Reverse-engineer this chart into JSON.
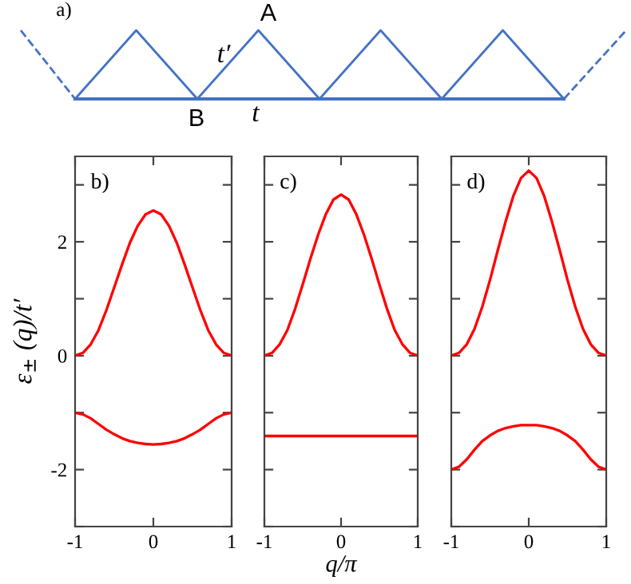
{
  "chart_data": [
    {
      "type": "other",
      "annotations": [
        "a)",
        "A",
        "t′",
        "B",
        "t"
      ]
    },
    {
      "type": "line",
      "annotations": [
        "b)"
      ],
      "ylabel": "ε$_{±}$ (q)/t′",
      "x": [
        -1,
        -0.9,
        -0.8,
        -0.7,
        -0.6,
        -0.5,
        -0.4,
        -0.3,
        -0.2,
        -0.1,
        0,
        0.1,
        0.2,
        0.3,
        0.4,
        0.5,
        0.6,
        0.7,
        0.8,
        0.9,
        1
      ],
      "series": [
        {
          "color": "#ff0000",
          "values": [
            0,
            0.05,
            0.2,
            0.45,
            0.8,
            1.2,
            1.6,
            1.98,
            2.28,
            2.48,
            2.55,
            2.48,
            2.28,
            1.98,
            1.6,
            1.2,
            0.8,
            0.45,
            0.2,
            0.05,
            0
          ]
        },
        {
          "color": "#ff0000",
          "values": [
            -1,
            -1.03,
            -1.1,
            -1.2,
            -1.3,
            -1.38,
            -1.45,
            -1.5,
            -1.53,
            -1.55,
            -1.56,
            -1.55,
            -1.53,
            -1.5,
            -1.45,
            -1.38,
            -1.3,
            -1.2,
            -1.1,
            -1.03,
            -1
          ]
        }
      ],
      "xlim": [
        -1,
        1
      ],
      "ylim": [
        -3,
        3.5
      ],
      "xticks": [
        -1,
        0,
        1
      ],
      "yticks": [
        {
          "value": -3,
          "label": null
        },
        -2,
        {
          "value": -1,
          "label": null
        },
        0,
        {
          "value": 1,
          "label": null
        },
        2,
        {
          "value": 3,
          "label": null
        }
      ],
      "grid": false,
      "legend": false,
      "marker": "none",
      "line_style": "solid"
    },
    {
      "type": "line",
      "annotations": [
        "c)"
      ],
      "xlabel": "q/π",
      "x": [
        -1,
        -0.9,
        -0.8,
        -0.7,
        -0.6,
        -0.5,
        -0.4,
        -0.3,
        -0.2,
        -0.1,
        0,
        0.1,
        0.2,
        0.3,
        0.4,
        0.5,
        0.6,
        0.7,
        0.8,
        0.9,
        1
      ],
      "series": [
        {
          "color": "#ff0000",
          "values": [
            0,
            0.05,
            0.2,
            0.45,
            0.82,
            1.25,
            1.7,
            2.12,
            2.48,
            2.74,
            2.83,
            2.74,
            2.48,
            2.12,
            1.7,
            1.25,
            0.82,
            0.45,
            0.2,
            0.05,
            0
          ]
        },
        {
          "color": "#ff0000",
          "values": [
            -1.41,
            -1.41,
            -1.41,
            -1.41,
            -1.41,
            -1.41,
            -1.41,
            -1.41,
            -1.41,
            -1.41,
            -1.41,
            -1.41,
            -1.41,
            -1.41,
            -1.41,
            -1.41,
            -1.41,
            -1.41,
            -1.41,
            -1.41,
            -1.41
          ]
        }
      ],
      "xlim": [
        -1,
        1
      ],
      "ylim": [
        -3,
        3.5
      ],
      "xticks": [
        -1,
        0,
        1
      ],
      "yticks": [
        {
          "value": -3,
          "label": null
        },
        -2,
        {
          "value": -1,
          "label": null
        },
        0,
        {
          "value": 1,
          "label": null
        },
        2,
        {
          "value": 3,
          "label": null
        }
      ],
      "tick_labels": "x",
      "grid": false,
      "legend": false,
      "marker": "none",
      "line_style": "solid"
    },
    {
      "type": "line",
      "annotations": [
        "d)"
      ],
      "x": [
        -1,
        -0.9,
        -0.8,
        -0.7,
        -0.6,
        -0.5,
        -0.4,
        -0.3,
        -0.2,
        -0.1,
        0,
        0.1,
        0.2,
        0.3,
        0.4,
        0.5,
        0.6,
        0.7,
        0.8,
        0.9,
        1
      ],
      "series": [
        {
          "color": "#ff0000",
          "values": [
            0,
            0.05,
            0.2,
            0.47,
            0.86,
            1.33,
            1.85,
            2.35,
            2.8,
            3.12,
            3.25,
            3.12,
            2.8,
            2.35,
            1.85,
            1.33,
            0.86,
            0.47,
            0.2,
            0.05,
            0
          ]
        },
        {
          "color": "#ff0000",
          "values": [
            -2,
            -1.95,
            -1.82,
            -1.65,
            -1.5,
            -1.4,
            -1.32,
            -1.27,
            -1.24,
            -1.22,
            -1.22,
            -1.22,
            -1.24,
            -1.27,
            -1.32,
            -1.4,
            -1.5,
            -1.65,
            -1.82,
            -1.95,
            -2
          ]
        }
      ],
      "xlim": [
        -1,
        1
      ],
      "ylim": [
        -3,
        3.5
      ],
      "xticks": [
        -1,
        0,
        1
      ],
      "yticks": [
        {
          "value": -3,
          "label": null
        },
        -2,
        {
          "value": -1,
          "label": null
        },
        0,
        {
          "value": 1,
          "label": null
        },
        2,
        {
          "value": 3,
          "label": null
        }
      ],
      "tick_labels": "x",
      "grid": false,
      "legend": false,
      "marker": "none",
      "line_style": "solid"
    }
  ]
}
